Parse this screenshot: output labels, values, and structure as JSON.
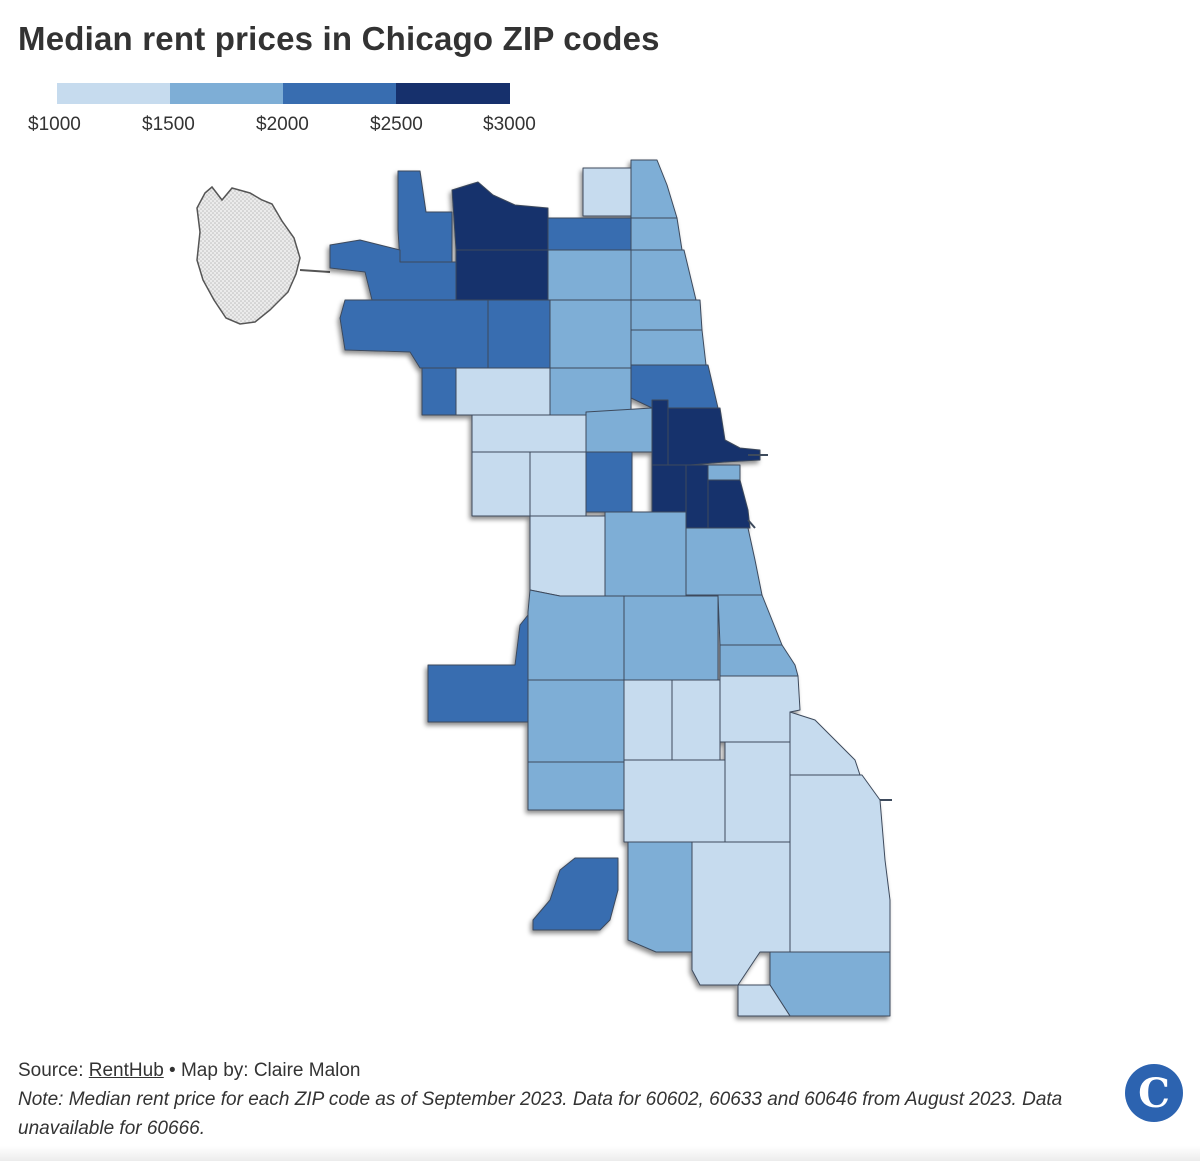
{
  "title": "Median rent prices in Chicago ZIP codes",
  "legend": {
    "bins": [
      {
        "from": 1000,
        "to": 1500,
        "color": "#c6dbee"
      },
      {
        "from": 1500,
        "to": 2000,
        "color": "#7eaed6"
      },
      {
        "from": 2000,
        "to": 2500,
        "color": "#386db0"
      },
      {
        "from": 2500,
        "to": 3000,
        "color": "#16306c"
      }
    ],
    "labels": [
      "$1000",
      "$1500",
      "$2000",
      "$2500",
      "$3000"
    ]
  },
  "map": {
    "no_data_color": "#e6e6e6",
    "region_count": 54,
    "no_data_regions": 1
  },
  "footer": {
    "source_prefix": "Source: ",
    "source_link": "RentHub",
    "source_suffix": " • Map by: Claire Malon",
    "note": "Note: Median rent price for each ZIP code as of September 2023. Data for 60602, 60633 and 60646 from August 2023. Data unavailable for 60666."
  },
  "logo": {
    "letter": "C",
    "color": "#2c63b0"
  }
}
